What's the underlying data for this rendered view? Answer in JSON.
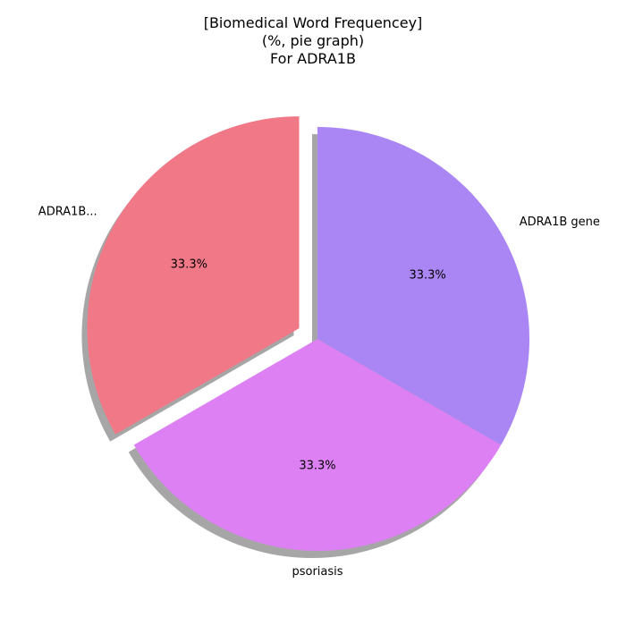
{
  "chart_data": {
    "type": "pie",
    "title": [
      "[Biomedical Word Frequencey]",
      "(%, pie graph)",
      "For ADRA1B"
    ],
    "categories": [
      "ADRA1B...",
      "psoriasis",
      "ADRA1B gene"
    ],
    "values": [
      33.3,
      33.3,
      33.3
    ],
    "value_labels": [
      "33.3%",
      "33.3%",
      "33.3%"
    ],
    "colors": [
      "#f07887",
      "#dd80f3",
      "#aa86f4"
    ],
    "exploded": [
      true,
      false,
      false
    ],
    "shadow": true,
    "start_angle_deg": 90,
    "direction": "counterclockwise"
  }
}
